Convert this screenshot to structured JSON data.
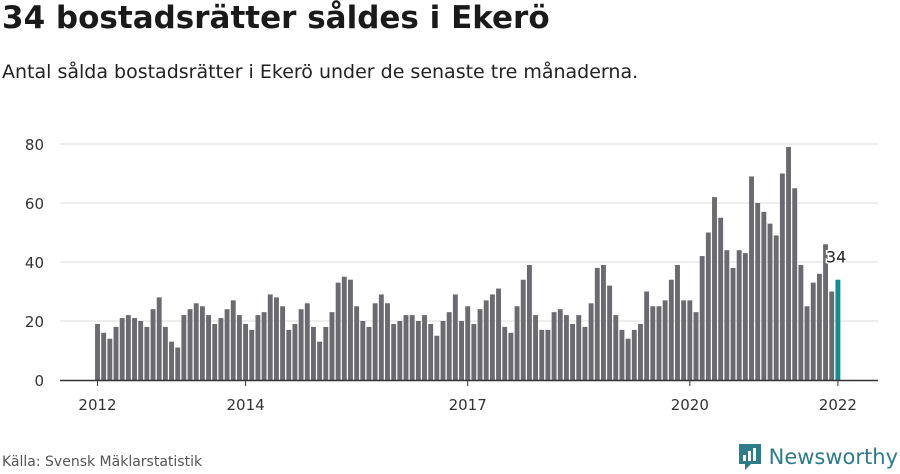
{
  "title": "34 bostadsrätter såldes i Ekerö",
  "subtitle": "Antal sålda bostadsrätter i Ekerö under de senaste tre månaderna.",
  "source": "Källa: Svensk Mäklarstatistik",
  "brand": {
    "name": "Newsworthy",
    "icon": "newsworthy-logo-icon",
    "color": "#2e7b8c"
  },
  "colors": {
    "bar": "#6b6a70",
    "highlight": "#0f8f92",
    "grid": "#dddddd",
    "axis": "#333333"
  },
  "chart_data": {
    "type": "bar",
    "start": "2012-01",
    "interval": "monthly",
    "values": [
      19,
      16,
      14,
      18,
      21,
      22,
      21,
      20,
      18,
      24,
      28,
      18,
      13,
      11,
      22,
      24,
      26,
      25,
      22,
      19,
      21,
      24,
      27,
      22,
      19,
      17,
      22,
      23,
      29,
      28,
      25,
      17,
      19,
      24,
      26,
      18,
      13,
      18,
      23,
      33,
      35,
      34,
      25,
      20,
      18,
      26,
      29,
      26,
      19,
      20,
      22,
      22,
      20,
      22,
      19,
      15,
      20,
      23,
      29,
      20,
      25,
      19,
      24,
      27,
      29,
      31,
      18,
      16,
      25,
      34,
      39,
      22,
      17,
      17,
      23,
      24,
      22,
      19,
      22,
      18,
      26,
      38,
      39,
      32,
      22,
      17,
      14,
      17,
      19,
      30,
      25,
      25,
      27,
      34,
      39,
      27,
      27,
      23,
      42,
      50,
      62,
      55,
      44,
      38,
      44,
      43,
      69,
      60,
      57,
      53,
      49,
      70,
      79,
      65,
      39,
      25,
      33,
      36,
      46,
      30,
      34
    ],
    "xtick_labels": [
      {
        "label": "2012",
        "index": 0
      },
      {
        "label": "2014",
        "index": 24
      },
      {
        "label": "2017",
        "index": 60
      },
      {
        "label": "2020",
        "index": 96
      },
      {
        "label": "2022",
        "index": 120
      }
    ],
    "yticks": [
      0,
      20,
      40,
      60,
      80
    ],
    "ylim": [
      0,
      80
    ],
    "highlight_index": 120,
    "annotation": "34",
    "grid": true
  }
}
